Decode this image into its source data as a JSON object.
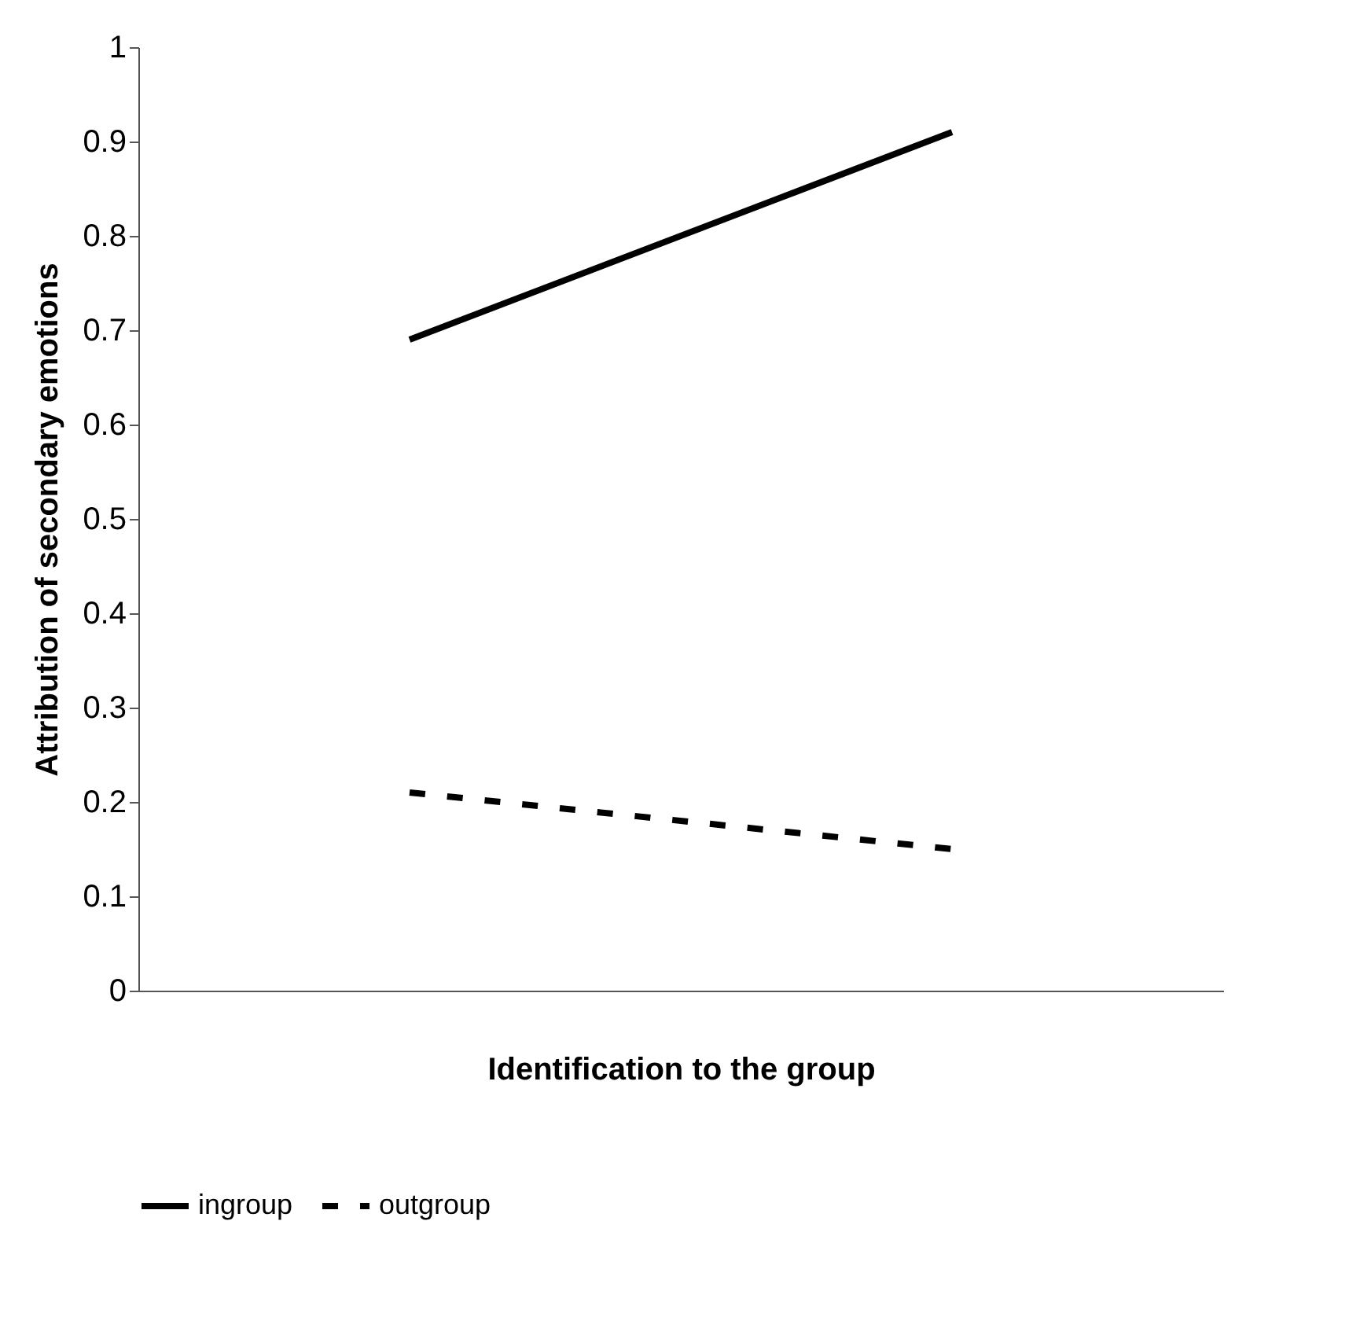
{
  "chart_data": {
    "type": "line",
    "xlabel": "Identification to the group",
    "ylabel": "Attribution of secondary emotions",
    "categories": [
      null,
      null
    ],
    "series": [
      {
        "name": "ingroup",
        "color": "#000000",
        "line_style": "solid",
        "values": [
          0.69,
          0.91
        ]
      },
      {
        "name": "outgroup",
        "color": "#000000",
        "line_style": "dashed",
        "values": [
          0.21,
          0.15
        ]
      }
    ],
    "ylim": [
      0,
      1
    ],
    "yticks": [
      0,
      0.1,
      0.2,
      0.3,
      0.4,
      0.5,
      0.6,
      0.7,
      0.8,
      0.9,
      1
    ],
    "legend": "bottom",
    "tick_labels": "y"
  }
}
